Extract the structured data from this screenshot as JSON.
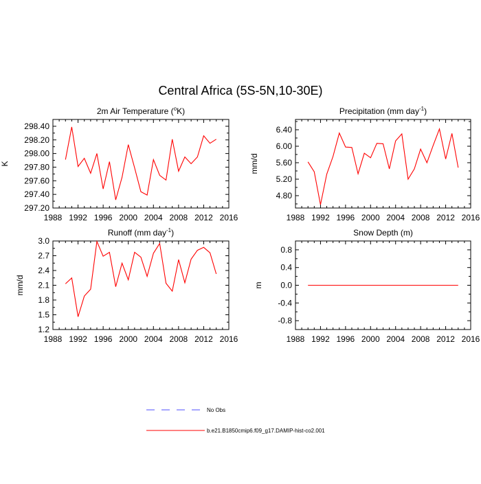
{
  "figure_title": "Central Africa (5S-5N,10-30E)",
  "legend": [
    {
      "label": "No Obs",
      "color": "#4d4dff",
      "dash": true
    },
    {
      "label": "b.e21.B1850cmip6.f09_g17.DAMIP-hist-co2.001",
      "color": "#ff0000",
      "dash": false
    }
  ],
  "chart_data": [
    {
      "type": "line",
      "title": "2m Air Temperature (",
      "title_sup": "o",
      "title_suffix": "K)",
      "ylabel": "K",
      "xlim": [
        1988,
        2016
      ],
      "ylim": [
        297.2,
        298.5
      ],
      "xticks": [
        1988,
        1992,
        1996,
        2000,
        2004,
        2008,
        2012,
        2016
      ],
      "yticks": [
        297.2,
        297.4,
        297.6,
        297.8,
        298.0,
        298.2,
        298.4
      ],
      "ytick_labels": [
        "297.20",
        "297.40",
        "297.60",
        "297.80",
        "298.00",
        "298.20",
        "298.40"
      ],
      "x": [
        1990,
        1991,
        1992,
        1993,
        1994,
        1995,
        1996,
        1997,
        1998,
        1999,
        2000,
        2001,
        2002,
        2003,
        2004,
        2005,
        2006,
        2007,
        2008,
        2009,
        2010,
        2011,
        2012,
        2013,
        2014
      ],
      "series": [
        {
          "color": "#ff0000",
          "values": [
            297.91,
            298.39,
            297.81,
            297.93,
            297.71,
            298.0,
            297.48,
            297.88,
            297.32,
            297.65,
            298.13,
            297.79,
            297.44,
            297.39,
            297.91,
            297.68,
            297.61,
            298.21,
            297.74,
            297.95,
            297.85,
            297.95,
            298.26,
            298.15,
            298.21
          ]
        }
      ]
    },
    {
      "type": "line",
      "title": "Precipitation (mm day",
      "title_sup": "-1",
      "title_suffix": ")",
      "ylabel": "mm/d",
      "xlim": [
        1988,
        2016
      ],
      "ylim": [
        4.5,
        6.65
      ],
      "xticks": [
        1988,
        1992,
        1996,
        2000,
        2004,
        2008,
        2012,
        2016
      ],
      "yticks": [
        4.8,
        5.2,
        5.6,
        6.0,
        6.4
      ],
      "ytick_labels": [
        "4.80",
        "5.20",
        "5.60",
        "6.00",
        "6.40"
      ],
      "x": [
        1990,
        1991,
        1992,
        1993,
        1994,
        1995,
        1996,
        1997,
        1998,
        1999,
        2000,
        2001,
        2002,
        2003,
        2004,
        2005,
        2006,
        2007,
        2008,
        2009,
        2010,
        2011,
        2012,
        2013,
        2014
      ],
      "series": [
        {
          "color": "#ff0000",
          "values": [
            5.62,
            5.38,
            4.58,
            5.32,
            5.75,
            6.32,
            5.98,
            5.97,
            5.33,
            5.83,
            5.72,
            6.07,
            6.06,
            5.45,
            6.13,
            6.3,
            5.2,
            5.45,
            5.93,
            5.6,
            6.02,
            6.42,
            5.69,
            6.31,
            5.48
          ]
        }
      ]
    },
    {
      "type": "line",
      "title": "Runoff (mm day",
      "title_sup": "-1",
      "title_suffix": ")",
      "ylabel": "mm/d",
      "xlim": [
        1988,
        2016
      ],
      "ylim": [
        1.2,
        3.0
      ],
      "xticks": [
        1988,
        1992,
        1996,
        2000,
        2004,
        2008,
        2012,
        2016
      ],
      "yticks": [
        1.2,
        1.5,
        1.8,
        2.1,
        2.4,
        2.7,
        3.0
      ],
      "ytick_labels": [
        "1.2",
        "1.5",
        "1.8",
        "2.1",
        "2.4",
        "2.7",
        "3.0"
      ],
      "x": [
        1990,
        1991,
        1992,
        1993,
        1994,
        1995,
        1996,
        1997,
        1998,
        1999,
        2000,
        2001,
        2002,
        2003,
        2004,
        2005,
        2006,
        2007,
        2008,
        2009,
        2010,
        2011,
        2012,
        2013,
        2014
      ],
      "series": [
        {
          "color": "#ff0000",
          "values": [
            2.13,
            2.25,
            1.46,
            1.88,
            2.02,
            2.99,
            2.69,
            2.77,
            2.07,
            2.55,
            2.21,
            2.77,
            2.67,
            2.28,
            2.75,
            2.95,
            2.14,
            1.98,
            2.62,
            2.15,
            2.63,
            2.81,
            2.87,
            2.76,
            2.33
          ]
        }
      ]
    },
    {
      "type": "line",
      "title": "Snow Depth (m)",
      "title_sup": "",
      "title_suffix": "",
      "ylabel": "m",
      "xlim": [
        1988,
        2016
      ],
      "ylim": [
        -1.0,
        1.0
      ],
      "xticks": [
        1988,
        1992,
        1996,
        2000,
        2004,
        2008,
        2012,
        2016
      ],
      "yticks": [
        -0.8,
        -0.4,
        0.0,
        0.4,
        0.8
      ],
      "ytick_labels": [
        "-0.8",
        "-0.4",
        "0.0",
        "0.4",
        "0.8"
      ],
      "x": [
        1990,
        1991,
        1992,
        1993,
        1994,
        1995,
        1996,
        1997,
        1998,
        1999,
        2000,
        2001,
        2002,
        2003,
        2004,
        2005,
        2006,
        2007,
        2008,
        2009,
        2010,
        2011,
        2012,
        2013,
        2014
      ],
      "series": [
        {
          "color": "#ff0000",
          "values": [
            0,
            0,
            0,
            0,
            0,
            0,
            0,
            0,
            0,
            0,
            0,
            0,
            0,
            0,
            0,
            0,
            0,
            0,
            0,
            0,
            0,
            0,
            0,
            0,
            0
          ]
        }
      ]
    }
  ]
}
